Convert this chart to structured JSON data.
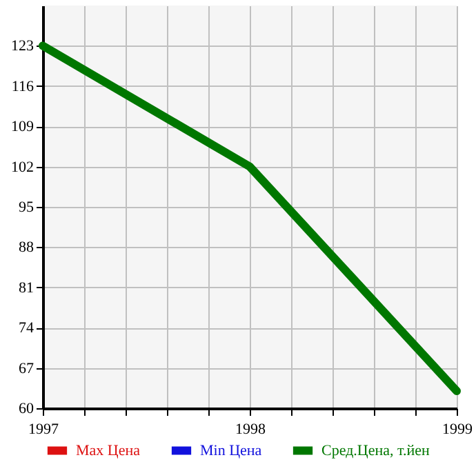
{
  "chart_data": {
    "type": "line",
    "x": [
      1997,
      1998,
      1999
    ],
    "series": [
      {
        "name": "Max Цена",
        "color": "#dd1111",
        "values": [
          null,
          null,
          null
        ]
      },
      {
        "name": "Min Цена",
        "color": "#1111dd",
        "values": [
          null,
          null,
          null
        ]
      },
      {
        "name": "Сред.Цена, т.йен",
        "color": "#007700",
        "values": [
          123,
          102,
          63
        ]
      }
    ],
    "xlim": [
      1997,
      1999
    ],
    "xticks": [
      1997,
      {
        "value": 1997.2,
        "label": null
      },
      {
        "value": 1997.4,
        "label": null
      },
      {
        "value": 1997.6,
        "label": null
      },
      {
        "value": 1997.8,
        "label": null
      },
      1998,
      {
        "value": 1998.2,
        "label": null
      },
      {
        "value": 1998.4,
        "label": null
      },
      {
        "value": 1998.6,
        "label": null
      },
      {
        "value": 1998.8,
        "label": null
      },
      1999
    ],
    "ylim": [
      60,
      130
    ],
    "yticks": [
      60,
      67,
      74,
      81,
      88,
      95,
      102,
      109,
      116,
      123
    ],
    "grid": true,
    "legend": "bottom",
    "marker": "none",
    "line_style": "solid"
  }
}
